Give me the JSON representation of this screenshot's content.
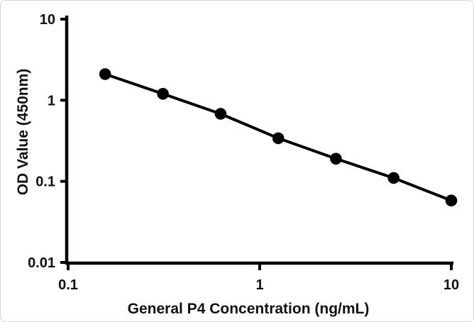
{
  "chart_data": {
    "type": "line",
    "title": "",
    "xlabel": "General P4 Concentration (ng/mL)",
    "ylabel": "OD Value (450nm)",
    "x_scale": "log",
    "y_scale": "log",
    "xlim": [
      0.1,
      10
    ],
    "ylim": [
      0.01,
      10
    ],
    "x_ticks": [
      {
        "value": 0.1,
        "label": "0.1"
      },
      {
        "value": 1,
        "label": "1"
      },
      {
        "value": 10,
        "label": "10"
      }
    ],
    "y_ticks": [
      {
        "value": 10,
        "label": "10"
      },
      {
        "value": 1,
        "label": "1"
      },
      {
        "value": 0.1,
        "label": "0.1"
      },
      {
        "value": 0.01,
        "label": "0.01"
      }
    ],
    "grid": false,
    "legend": false,
    "series": [
      {
        "x": [
          0.156,
          0.3125,
          0.625,
          1.25,
          2.5,
          5,
          10
        ],
        "y": [
          2.1,
          1.2,
          0.68,
          0.34,
          0.19,
          0.11,
          0.058
        ],
        "marker": "circle",
        "marker_color": "#000000",
        "line_color": "#000000"
      }
    ]
  },
  "colors": {
    "axis": "#000000",
    "text": "#111111",
    "frame_border": "#d5d5d5",
    "background": "#ffffff"
  }
}
